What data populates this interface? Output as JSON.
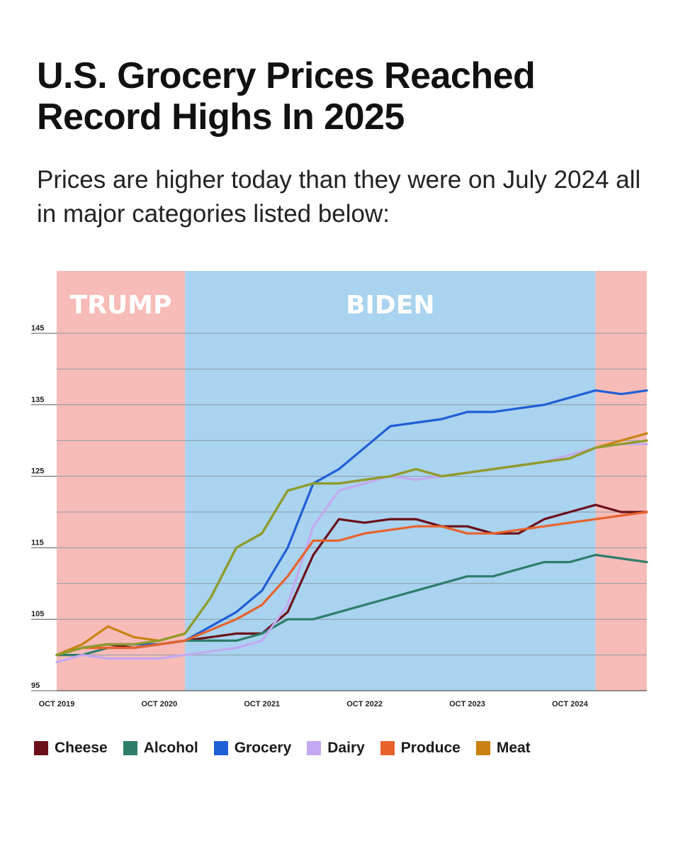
{
  "header": {
    "title": "U.S. Grocery Prices Reached Record Highs In 2025",
    "subtitle": "Prices are higher today than they were on July 2024 all in major categories listed below:"
  },
  "chart_data": {
    "type": "line",
    "title": "U.S. Grocery Prices Reached Record Highs In 2025",
    "xlabel": "",
    "ylabel": "",
    "ylim": [
      95,
      145
    ],
    "xlim": [
      "2019-10",
      "2025-07"
    ],
    "grid": true,
    "legend_position": "bottom",
    "y_ticks": [
      95,
      105,
      115,
      125,
      135,
      145
    ],
    "x_ticks": [
      {
        "date": "2019-10",
        "label": "OCT 2019"
      },
      {
        "date": "2020-10",
        "label": "OCT 2020"
      },
      {
        "date": "2021-10",
        "label": "OCT 2021"
      },
      {
        "date": "2022-10",
        "label": "OCT 2022"
      },
      {
        "date": "2023-10",
        "label": "OCT 2023"
      },
      {
        "date": "2024-10",
        "label": "OCT 2024"
      }
    ],
    "eras": [
      {
        "label": "TRUMP",
        "start": "2019-10",
        "end": "2021-01",
        "color": "#f7bcb8"
      },
      {
        "label": "BIDEN",
        "start": "2021-01",
        "end": "2025-01",
        "color": "#a9d3ef"
      },
      {
        "label": "",
        "start": "2025-01",
        "end": "2025-07",
        "color": "#f7bcb8"
      }
    ],
    "x": [
      "2019-10",
      "2020-01",
      "2020-04",
      "2020-07",
      "2020-10",
      "2021-01",
      "2021-04",
      "2021-07",
      "2021-10",
      "2022-01",
      "2022-04",
      "2022-07",
      "2022-10",
      "2023-01",
      "2023-04",
      "2023-07",
      "2023-10",
      "2024-01",
      "2024-04",
      "2024-07",
      "2024-10",
      "2025-01",
      "2025-04",
      "2025-07"
    ],
    "series": [
      {
        "name": "Cheese",
        "color": "#6b0f1a",
        "values": [
          100,
          101,
          101.5,
          101,
          101.5,
          102,
          102.5,
          103,
          103,
          106,
          114,
          119,
          118.5,
          119,
          119,
          118,
          118,
          117,
          117,
          119,
          120,
          121,
          120,
          120
        ]
      },
      {
        "name": "Alcohol",
        "color": "#2e7d6b",
        "values": [
          100,
          100,
          101,
          101,
          101.5,
          102,
          102,
          102,
          103,
          105,
          105,
          106,
          107,
          108,
          109,
          110,
          111,
          111,
          112,
          113,
          113,
          114,
          113.5,
          113
        ]
      },
      {
        "name": "Grocery",
        "color": "#1f5fd6",
        "values": [
          100,
          101,
          101.5,
          101.5,
          101.5,
          102,
          104,
          106,
          109,
          115,
          124,
          126,
          129,
          132,
          132.5,
          133,
          134,
          134,
          134.5,
          135,
          136,
          137,
          136.5,
          137
        ]
      },
      {
        "name": "Dairy",
        "color": "#c3a9f0",
        "values": [
          99,
          100,
          99.5,
          99.5,
          99.5,
          100,
          100.5,
          101,
          102,
          107,
          118,
          123,
          124,
          125,
          124.5,
          125,
          125.5,
          126,
          126.5,
          127,
          128,
          129,
          129.5,
          129.5
        ]
      },
      {
        "name": "Produce",
        "color": "#e8622c",
        "values": [
          100,
          101,
          101,
          101,
          101.5,
          102,
          103.5,
          105,
          107,
          111,
          116,
          116,
          117,
          117.5,
          118,
          118,
          117,
          117,
          117.5,
          118,
          118.5,
          119,
          119.5,
          120
        ]
      },
      {
        "name": "Meat",
        "color": "#c9820f",
        "values": [
          100,
          101.5,
          104,
          102.5,
          102,
          103,
          108,
          115,
          117,
          123,
          124,
          124,
          124.5,
          125,
          126,
          125,
          125.5,
          126,
          126.5,
          127,
          127.5,
          129,
          130,
          131
        ]
      },
      {
        "name": "",
        "color": "#8e9c2c",
        "values": [
          100,
          101,
          101.5,
          101.5,
          102,
          103,
          108,
          115,
          117,
          123,
          124,
          124,
          124.5,
          125,
          126,
          125,
          125.5,
          126,
          126.5,
          127,
          127.5,
          129,
          129.5,
          130
        ]
      }
    ]
  },
  "legend": [
    {
      "name": "Cheese",
      "color": "#6b0f1a"
    },
    {
      "name": "Alcohol",
      "color": "#2e7d6b"
    },
    {
      "name": "Grocery",
      "color": "#1f5fd6"
    },
    {
      "name": "Dairy",
      "color": "#c3a9f0"
    },
    {
      "name": "Produce",
      "color": "#e8622c"
    },
    {
      "name": "Meat",
      "color": "#c9820f"
    }
  ]
}
